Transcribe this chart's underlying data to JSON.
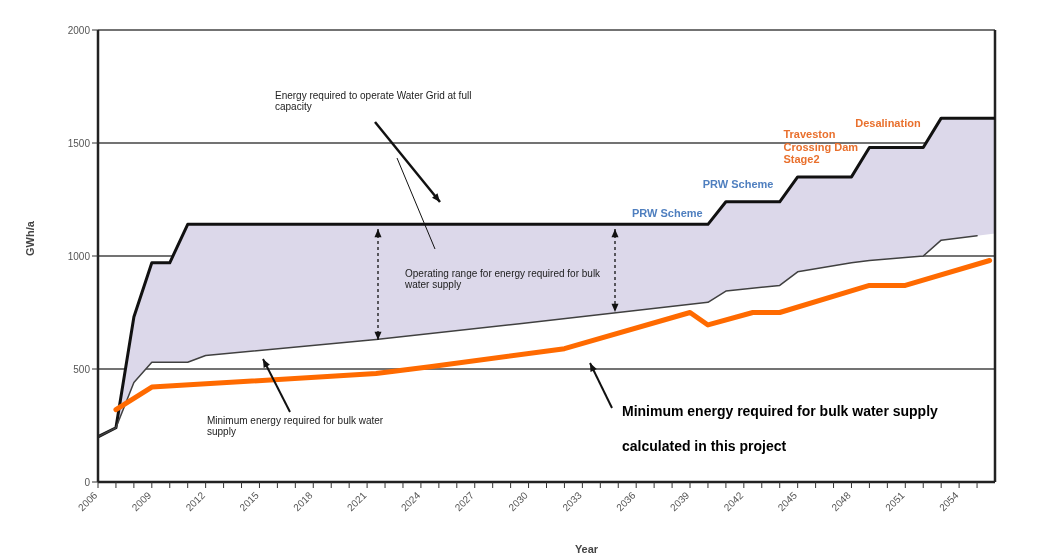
{
  "chart_data": {
    "type": "line",
    "xlabel": "Year",
    "ylabel": "GWh/a",
    "xlim": [
      2006,
      2056
    ],
    "ylim": [
      0,
      2000
    ],
    "yticks": [
      0,
      500,
      1000,
      1500,
      2000
    ],
    "xticks": [
      2006,
      {
        "value": 2007,
        "label": null
      },
      {
        "value": 2008,
        "label": null
      },
      2009,
      {
        "value": 2010,
        "label": null
      },
      {
        "value": 2011,
        "label": null
      },
      2012,
      {
        "value": 2013,
        "label": null
      },
      {
        "value": 2014,
        "label": null
      },
      2015,
      {
        "value": 2016,
        "label": null
      },
      {
        "value": 2017,
        "label": null
      },
      2018,
      {
        "value": 2019,
        "label": null
      },
      {
        "value": 2020,
        "label": null
      },
      2021,
      {
        "value": 2022,
        "label": null
      },
      {
        "value": 2023,
        "label": null
      },
      2024,
      {
        "value": 2025,
        "label": null
      },
      {
        "value": 2026,
        "label": null
      },
      2027,
      {
        "value": 2028,
        "label": null
      },
      {
        "value": 2029,
        "label": null
      },
      2030,
      {
        "value": 2031,
        "label": null
      },
      {
        "value": 2032,
        "label": null
      },
      2033,
      {
        "value": 2034,
        "label": null
      },
      {
        "value": 2035,
        "label": null
      },
      2036,
      {
        "value": 2037,
        "label": null
      },
      {
        "value": 2038,
        "label": null
      },
      2039,
      {
        "value": 2040,
        "label": null
      },
      {
        "value": 2041,
        "label": null
      },
      2042,
      {
        "value": 2043,
        "label": null
      },
      {
        "value": 2044,
        "label": null
      },
      2045,
      {
        "value": 2046,
        "label": null
      },
      {
        "value": 2047,
        "label": null
      },
      2048,
      {
        "value": 2049,
        "label": null
      },
      {
        "value": 2050,
        "label": null
      },
      2051,
      {
        "value": 2052,
        "label": null
      },
      {
        "value": 2053,
        "label": null
      },
      2054,
      {
        "value": 2055,
        "label": null
      }
    ],
    "grid": "y",
    "legend": false,
    "marker": "none",
    "line_style": "solid",
    "series": [
      {
        "type": "line",
        "color": "#111111",
        "x": [
          2006,
          2007,
          2008,
          2009,
          2010,
          2011,
          2012,
          2021.5,
          2029.5,
          2040,
          2041,
          2044,
          2045,
          2048,
          2049,
          2052,
          2053,
          2055,
          2056
        ],
        "values": [
          200,
          240,
          730,
          970,
          970,
          1140,
          1140,
          1140,
          1140,
          1140,
          1240,
          1240,
          1350,
          1350,
          1480,
          1480,
          1610,
          1610,
          1610
        ],
        "lower": [
          200,
          240,
          440,
          530,
          530,
          530,
          560,
          630,
          700,
          795,
          845,
          870,
          930,
          970,
          980,
          1000,
          1070,
          1090,
          1100
        ],
        "upper": [
          200,
          240,
          730,
          970,
          970,
          1140,
          1140,
          1140,
          1140,
          1140,
          1240,
          1240,
          1350,
          1350,
          1480,
          1480,
          1610,
          1610,
          1610
        ]
      },
      {
        "type": "line",
        "color": "#404040",
        "x": [
          2006,
          2007,
          2008,
          2009,
          2010,
          2011,
          2012,
          2021.5,
          2029.5,
          2040,
          2041,
          2044,
          2045,
          2048,
          2049,
          2052,
          2053,
          2055
        ],
        "values": [
          200,
          240,
          440,
          530,
          530,
          530,
          560,
          630,
          700,
          795,
          845,
          870,
          930,
          970,
          980,
          1000,
          1070,
          1090
        ]
      },
      {
        "type": "line",
        "color": "#ff6a00",
        "x": [
          2007,
          2009,
          2021.5,
          2024.5,
          2032,
          2039,
          2040,
          2042.5,
          2044,
          2049,
          2051,
          2055.7
        ],
        "values": [
          320,
          420,
          480,
          510,
          590,
          750,
          695,
          750,
          750,
          870,
          870,
          980
        ]
      }
    ],
    "annotations": [
      "Energy required to operate Water Grid at full capacity",
      "Operating range for energy required for bulk water supply",
      "Minimum energy required for bulk water supply",
      "Minimum energy required for bulk water supply calculated in this project",
      {
        "text": "PRW Scheme",
        "x": 2040,
        "y": 1140
      },
      {
        "text": "PRW Scheme",
        "x": 2044,
        "y": 1240
      },
      {
        "text": "Traveston Crossing Dam Stage2",
        "x": 2048,
        "y": 1350
      },
      {
        "text": "Desalination",
        "x": 2052,
        "y": 1480
      }
    ]
  }
}
